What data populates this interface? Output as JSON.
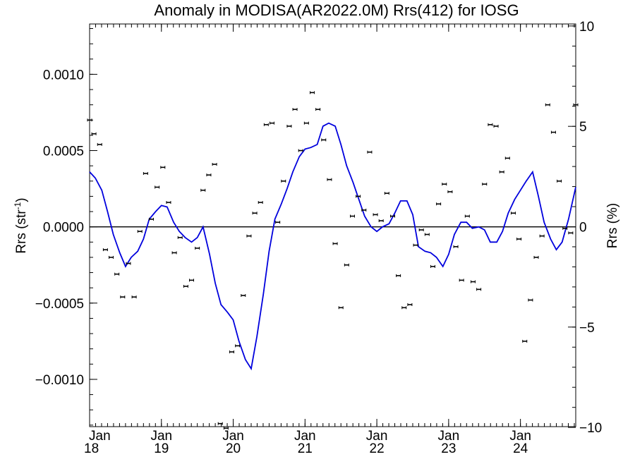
{
  "chart_data": {
    "type": "scatter",
    "title": "Anomaly in MODISA(AR2022.0M) Rrs(412) for IOSG",
    "ylabel": "Rrs (str",
    "ylabel_sup": "-1",
    "ylabel_close": ")",
    "ylabel_right": "Rrs (%)",
    "xlim": [
      2018.0,
      2024.77
    ],
    "ylim": [
      -0.00131,
      0.00133
    ],
    "y2lim": [
      -9.96,
      10.1
    ],
    "yticks": [
      -0.001,
      -0.0005,
      0.0,
      0.0005,
      0.001
    ],
    "ytick_labels": [
      "−0.0010",
      "−0.0005",
      "0.0000",
      "0.0005",
      "0.0010"
    ],
    "y2ticks": [
      -10,
      -5,
      0,
      5,
      10
    ],
    "y2tick_labels": [
      "−10",
      "−5",
      "0",
      "5",
      "10"
    ],
    "xticks": [
      2018,
      2019,
      2020,
      2021,
      2022,
      2023,
      2024
    ],
    "xtick_labels": [
      {
        "month": "Jan",
        "year": "18"
      },
      {
        "month": "Jan",
        "year": "19"
      },
      {
        "month": "Jan",
        "year": "20"
      },
      {
        "month": "Jan",
        "year": "21"
      },
      {
        "month": "Jan",
        "year": "22"
      },
      {
        "month": "Jan",
        "year": "23"
      },
      {
        "month": "Jan",
        "year": "24"
      }
    ],
    "zero_line": true,
    "colors": {
      "points": "#000000",
      "smooth_line": "#0000dd",
      "zero_line": "#000000"
    },
    "series": [
      {
        "kind": "points",
        "x": [
          2018.0,
          2018.06,
          2018.14,
          2018.22,
          2018.3,
          2018.38,
          2018.46,
          2018.54,
          2018.62,
          2018.7,
          2018.78,
          2018.86,
          2018.94,
          2019.02,
          2019.1,
          2019.18,
          2019.26,
          2019.34,
          2019.42,
          2019.5,
          2019.58,
          2019.66,
          2019.74,
          2019.82,
          2019.9,
          2019.98,
          2020.06,
          2020.14,
          2020.22,
          2020.3,
          2020.38,
          2020.46,
          2020.54,
          2020.62,
          2020.7,
          2020.78,
          2020.86,
          2020.94,
          2021.02,
          2021.1,
          2021.18,
          2021.26,
          2021.34,
          2021.42,
          2021.5,
          2021.58,
          2021.66,
          2021.74,
          2021.82,
          2021.9,
          2021.98,
          2022.06,
          2022.14,
          2022.22,
          2022.3,
          2022.38,
          2022.46,
          2022.54,
          2022.62,
          2022.7,
          2022.78,
          2022.86,
          2022.94,
          2023.02,
          2023.1,
          2023.18,
          2023.26,
          2023.34,
          2023.42,
          2023.5,
          2023.58,
          2023.66,
          2023.74,
          2023.82,
          2023.9,
          2023.98,
          2024.06,
          2024.14,
          2024.22,
          2024.3,
          2024.38,
          2024.46,
          2024.54,
          2024.62,
          2024.7,
          2024.77
        ],
        "y": [
          0.0007,
          0.00061,
          0.00054,
          -0.00015,
          -0.0002,
          -0.00031,
          -0.00046,
          -0.00024,
          -0.00046,
          -3e-05,
          0.00035,
          5e-05,
          0.00026,
          0.00039,
          0.00016,
          -0.00017,
          -7e-05,
          -0.00039,
          -0.00035,
          -0.00014,
          0.00024,
          0.00034,
          0.00041,
          -0.00129,
          -0.00132,
          -0.00082,
          -0.00078,
          -0.00045,
          -6e-05,
          9e-05,
          0.00016,
          0.00067,
          0.00068,
          3e-05,
          0.0003,
          0.00066,
          0.00077,
          0.0005,
          0.00068,
          0.00088,
          0.00077,
          0.00057,
          0.00031,
          -0.00011,
          -0.00053,
          -0.00025,
          7e-05,
          0.0002,
          0.00011,
          0.00049,
          8e-05,
          4e-05,
          0.00022,
          7e-05,
          -0.00032,
          -0.00053,
          -0.00051,
          -0.00012,
          -2e-05,
          -5e-05,
          -0.00026,
          0.00015,
          0.00028,
          0.00023,
          -0.00013,
          -0.00035,
          7e-05,
          -0.00036,
          -0.00041,
          0.00028,
          0.00067,
          0.00066,
          0.00036,
          0.00045,
          9e-05,
          -8e-05,
          -0.00075,
          -0.00048,
          -0.0002,
          -6e-05,
          0.0008,
          0.00062,
          0.0003,
          -1e-05,
          -4e-05,
          0.0008
        ]
      },
      {
        "kind": "smooth",
        "x": [
          2018.0,
          2018.08,
          2018.17,
          2018.25,
          2018.33,
          2018.42,
          2018.5,
          2018.58,
          2018.67,
          2018.75,
          2018.83,
          2018.92,
          2019.0,
          2019.08,
          2019.17,
          2019.25,
          2019.33,
          2019.42,
          2019.5,
          2019.58,
          2019.67,
          2019.75,
          2019.83,
          2019.92,
          2020.0,
          2020.08,
          2020.17,
          2020.25,
          2020.33,
          2020.42,
          2020.5,
          2020.58,
          2020.67,
          2020.75,
          2020.83,
          2020.92,
          2021.0,
          2021.08,
          2021.17,
          2021.25,
          2021.33,
          2021.42,
          2021.5,
          2021.58,
          2021.67,
          2021.75,
          2021.83,
          2021.92,
          2022.0,
          2022.08,
          2022.17,
          2022.25,
          2022.33,
          2022.42,
          2022.5,
          2022.58,
          2022.67,
          2022.75,
          2022.83,
          2022.92,
          2023.0,
          2023.08,
          2023.17,
          2023.25,
          2023.33,
          2023.42,
          2023.5,
          2023.58,
          2023.67,
          2023.75,
          2023.83,
          2023.92,
          2024.0,
          2024.08,
          2024.17,
          2024.25,
          2024.33,
          2024.42,
          2024.5,
          2024.58,
          2024.67,
          2024.77
        ],
        "y": [
          0.00036,
          0.00032,
          0.00024,
          0.0001,
          -5e-05,
          -0.00017,
          -0.00026,
          -0.0002,
          -0.00016,
          -8e-05,
          5e-05,
          0.0001,
          0.00014,
          0.00013,
          3e-05,
          -3e-05,
          -7e-05,
          -0.0001,
          -7e-05,
          0.0,
          -0.00018,
          -0.00037,
          -0.00051,
          -0.00056,
          -0.00061,
          -0.00075,
          -0.00087,
          -0.00093,
          -0.00072,
          -0.00044,
          -0.00016,
          5e-05,
          0.00015,
          0.00025,
          0.00036,
          0.00046,
          0.00051,
          0.00052,
          0.00054,
          0.00066,
          0.00068,
          0.00066,
          0.00054,
          0.0004,
          0.00029,
          0.00018,
          7e-05,
          0.0,
          -3e-05,
          0.0,
          2e-05,
          9e-05,
          0.00017,
          0.00017,
          8e-05,
          -0.00013,
          -0.00016,
          -0.00017,
          -0.0002,
          -0.00026,
          -0.00018,
          -5e-05,
          3e-05,
          3e-05,
          -1e-05,
          0.0,
          -2e-05,
          -0.0001,
          -0.0001,
          -3e-05,
          9e-05,
          0.00018,
          0.00024,
          0.0003,
          0.00036,
          0.0002,
          3e-05,
          -8e-05,
          -0.00015,
          -0.0001,
          5e-05,
          0.00026
        ]
      }
    ]
  }
}
